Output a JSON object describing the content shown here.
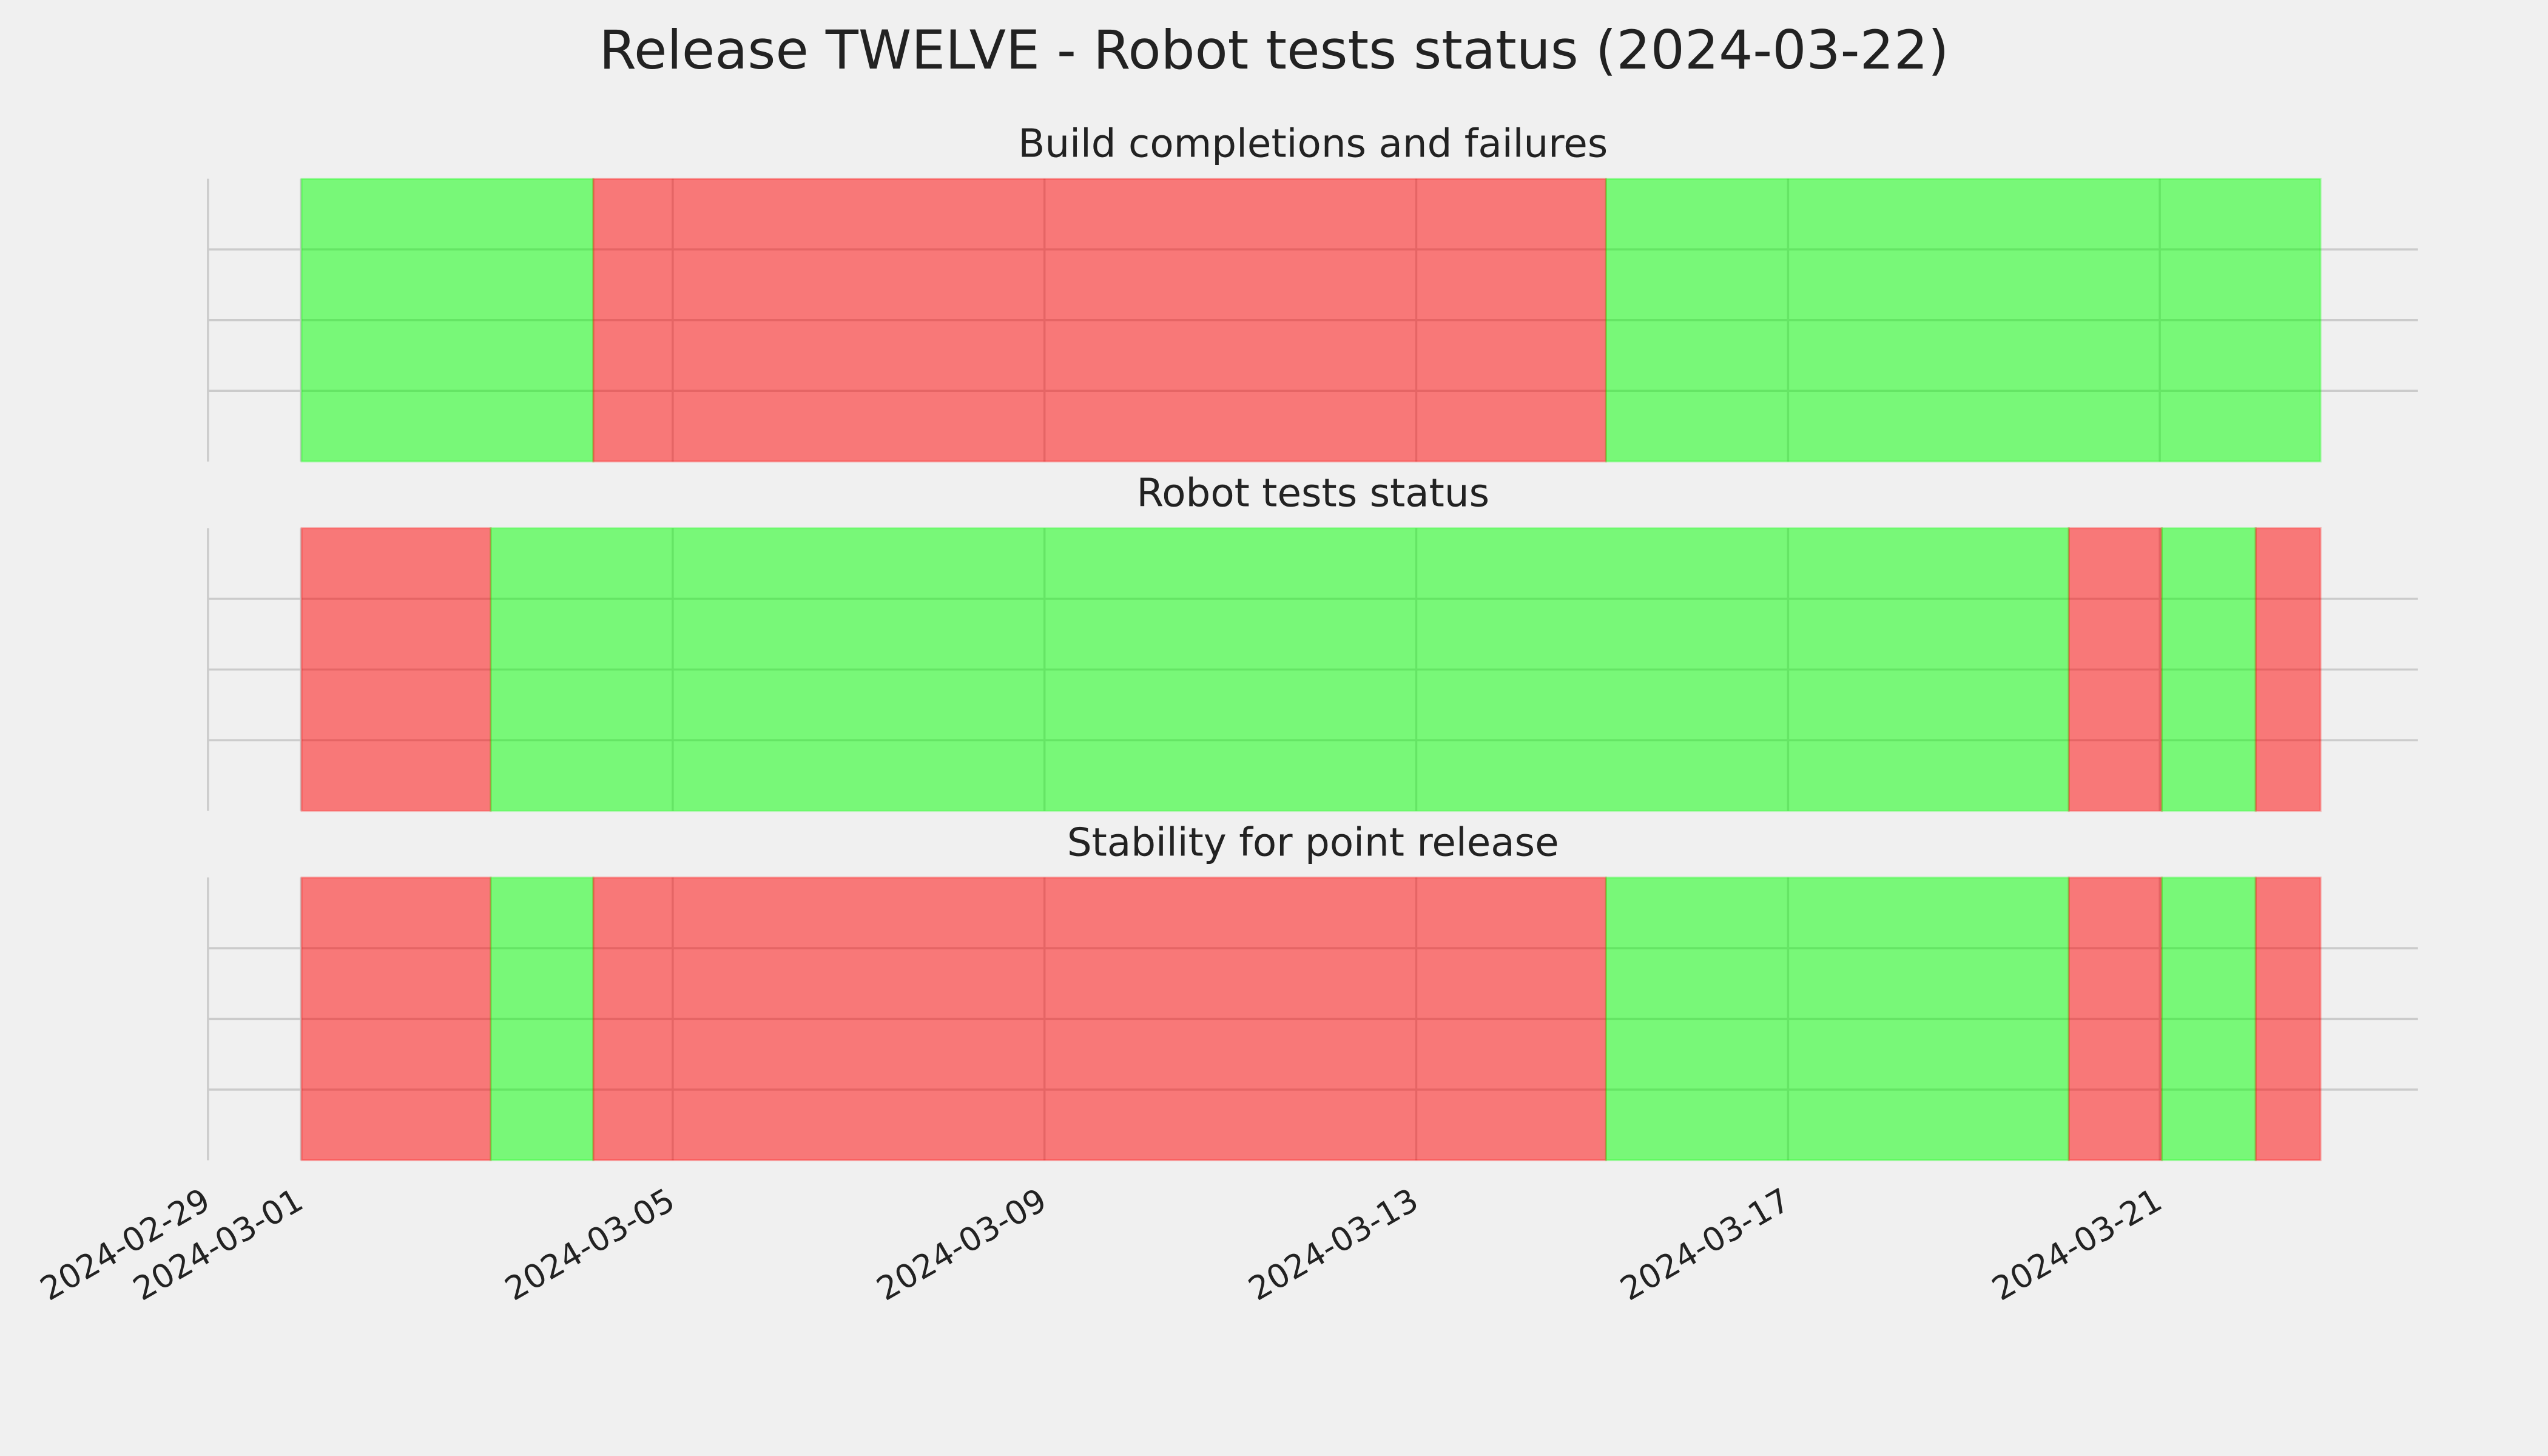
{
  "title": "Release TWELVE - Robot tests status (2024-03-22)",
  "chart_data": [
    {
      "type": "timeline",
      "title": "Build completions and failures",
      "xlim": [
        "2024-02-29T00:00",
        "2024-03-23T18:40"
      ],
      "xticks": [
        "2024-02-29",
        "2024-03-01",
        "2024-03-05",
        "2024-03-09",
        "2024-03-13",
        "2024-03-17",
        "2024-03-21"
      ],
      "ylim": [
        0,
        1
      ],
      "yticks": [
        0.25,
        0.5,
        0.75
      ],
      "grid": true,
      "segments": [
        {
          "start": "2024-03-01T00:10",
          "end": "2024-03-04T03:30",
          "color": "lime"
        },
        {
          "start": "2024-03-04T03:30",
          "end": "2024-03-15T01:00",
          "color": "red"
        },
        {
          "start": "2024-03-15T01:00",
          "end": "2024-03-22T17:30",
          "color": "lime"
        }
      ]
    },
    {
      "type": "timeline",
      "title": "Robot tests status",
      "xlim": [
        "2024-02-29T00:00",
        "2024-03-23T18:40"
      ],
      "xticks": [
        "2024-02-29",
        "2024-03-01",
        "2024-03-05",
        "2024-03-09",
        "2024-03-13",
        "2024-03-17",
        "2024-03-21"
      ],
      "ylim": [
        0,
        1
      ],
      "yticks": [
        0.25,
        0.5,
        0.75
      ],
      "grid": true,
      "segments": [
        {
          "start": "2024-03-01T00:10",
          "end": "2024-03-03T01:00",
          "color": "red"
        },
        {
          "start": "2024-03-03T01:00",
          "end": "2024-03-20T00:30",
          "color": "lime"
        },
        {
          "start": "2024-03-20T00:30",
          "end": "2024-03-21T00:30",
          "color": "red"
        },
        {
          "start": "2024-03-21T00:30",
          "end": "2024-03-22T00:45",
          "color": "lime"
        },
        {
          "start": "2024-03-22T00:45",
          "end": "2024-03-22T17:30",
          "color": "red"
        }
      ]
    },
    {
      "type": "timeline",
      "title": "Stability for point release",
      "xlim": [
        "2024-02-29T00:00",
        "2024-03-23T18:40"
      ],
      "xticks": [
        "2024-02-29",
        "2024-03-01",
        "2024-03-05",
        "2024-03-09",
        "2024-03-13",
        "2024-03-17",
        "2024-03-21"
      ],
      "ylim": [
        0,
        1
      ],
      "yticks": [
        0.25,
        0.5,
        0.75
      ],
      "grid": true,
      "segments": [
        {
          "start": "2024-03-01T00:10",
          "end": "2024-03-03T01:00",
          "color": "red"
        },
        {
          "start": "2024-03-03T01:00",
          "end": "2024-03-04T03:30",
          "color": "lime"
        },
        {
          "start": "2024-03-04T03:30",
          "end": "2024-03-15T01:00",
          "color": "red"
        },
        {
          "start": "2024-03-15T01:00",
          "end": "2024-03-20T00:30",
          "color": "lime"
        },
        {
          "start": "2024-03-20T00:30",
          "end": "2024-03-21T00:30",
          "color": "red"
        },
        {
          "start": "2024-03-21T00:30",
          "end": "2024-03-22T00:45",
          "color": "lime"
        },
        {
          "start": "2024-03-22T00:45",
          "end": "2024-03-22T17:30",
          "color": "red"
        }
      ]
    }
  ]
}
